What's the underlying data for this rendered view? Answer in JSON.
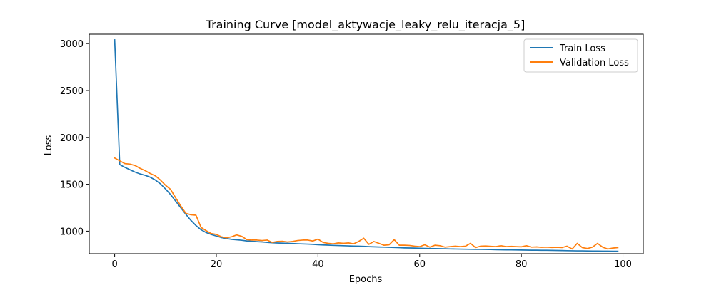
{
  "chart_data": {
    "type": "line",
    "title": "Training Curve [model_aktywacje_leaky_relu_iteracja_5]",
    "xlabel": "Epochs",
    "ylabel": "Loss",
    "xlim": [
      -5,
      104
    ],
    "ylim": [
      760,
      3100
    ],
    "xticks": [
      0,
      20,
      40,
      60,
      80,
      100
    ],
    "yticks": [
      1000,
      1500,
      2000,
      2500,
      3000
    ],
    "grid": false,
    "legend_position": "top-right",
    "series": [
      {
        "name": "Train Loss",
        "color": "#1f77b4",
        "x": [
          0,
          1,
          2,
          3,
          4,
          5,
          6,
          7,
          8,
          9,
          10,
          11,
          12,
          13,
          14,
          15,
          16,
          17,
          18,
          19,
          20,
          21,
          22,
          23,
          24,
          25,
          26,
          27,
          28,
          29,
          30,
          31,
          32,
          33,
          34,
          35,
          36,
          37,
          38,
          39,
          40,
          41,
          42,
          43,
          44,
          45,
          46,
          47,
          48,
          49,
          50,
          51,
          52,
          53,
          54,
          55,
          56,
          57,
          58,
          59,
          60,
          61,
          62,
          63,
          64,
          65,
          66,
          67,
          68,
          69,
          70,
          71,
          72,
          73,
          74,
          75,
          76,
          77,
          78,
          79,
          80,
          81,
          82,
          83,
          84,
          85,
          86,
          87,
          88,
          89,
          90,
          91,
          92,
          93,
          94,
          95,
          96,
          97,
          98,
          99
        ],
        "y": [
          3040,
          1710,
          1680,
          1655,
          1630,
          1610,
          1595,
          1575,
          1545,
          1505,
          1450,
          1390,
          1320,
          1250,
          1180,
          1115,
          1060,
          1015,
          985,
          965,
          948,
          932,
          922,
          913,
          908,
          903,
          896,
          892,
          888,
          885,
          880,
          877,
          874,
          872,
          870,
          868,
          866,
          864,
          862,
          860,
          856,
          853,
          851,
          849,
          847,
          845,
          843,
          841,
          840,
          838,
          835,
          833,
          831,
          830,
          828,
          826,
          824,
          822,
          821,
          820,
          818,
          816,
          815,
          814,
          813,
          812,
          811,
          810,
          809,
          808,
          807,
          806,
          806,
          805,
          804,
          803,
          802,
          801,
          801,
          800,
          799,
          798,
          797,
          797,
          796,
          796,
          795,
          794,
          793,
          792,
          791,
          790,
          790,
          789,
          788,
          788,
          787,
          787,
          786,
          786
        ]
      },
      {
        "name": "Validation Loss",
        "color": "#ff7f0e",
        "x": [
          0,
          1,
          2,
          3,
          4,
          5,
          6,
          7,
          8,
          9,
          10,
          11,
          12,
          13,
          14,
          15,
          16,
          17,
          18,
          19,
          20,
          21,
          22,
          23,
          24,
          25,
          26,
          27,
          28,
          29,
          30,
          31,
          32,
          33,
          34,
          35,
          36,
          37,
          38,
          39,
          40,
          41,
          42,
          43,
          44,
          45,
          46,
          47,
          48,
          49,
          50,
          51,
          52,
          53,
          54,
          55,
          56,
          57,
          58,
          59,
          60,
          61,
          62,
          63,
          64,
          65,
          66,
          67,
          68,
          69,
          70,
          71,
          72,
          73,
          74,
          75,
          76,
          77,
          78,
          79,
          80,
          81,
          82,
          83,
          84,
          85,
          86,
          87,
          88,
          89,
          90,
          91,
          92,
          93,
          94,
          95,
          96,
          97,
          98,
          99
        ],
        "y": [
          1780,
          1750,
          1720,
          1715,
          1700,
          1670,
          1645,
          1615,
          1590,
          1545,
          1490,
          1445,
          1355,
          1270,
          1190,
          1175,
          1170,
          1040,
          1005,
          975,
          965,
          940,
          930,
          940,
          960,
          945,
          910,
          905,
          905,
          900,
          905,
          880,
          890,
          892,
          885,
          890,
          900,
          905,
          905,
          895,
          915,
          880,
          870,
          865,
          875,
          870,
          875,
          865,
          890,
          925,
          860,
          890,
          870,
          850,
          855,
          910,
          850,
          850,
          848,
          840,
          835,
          855,
          830,
          850,
          845,
          830,
          835,
          840,
          835,
          840,
          870,
          825,
          840,
          842,
          838,
          835,
          845,
          835,
          838,
          835,
          833,
          845,
          830,
          832,
          828,
          830,
          826,
          828,
          825,
          840,
          810,
          870,
          825,
          815,
          830,
          870,
          830,
          810,
          820,
          825
        ]
      }
    ]
  }
}
